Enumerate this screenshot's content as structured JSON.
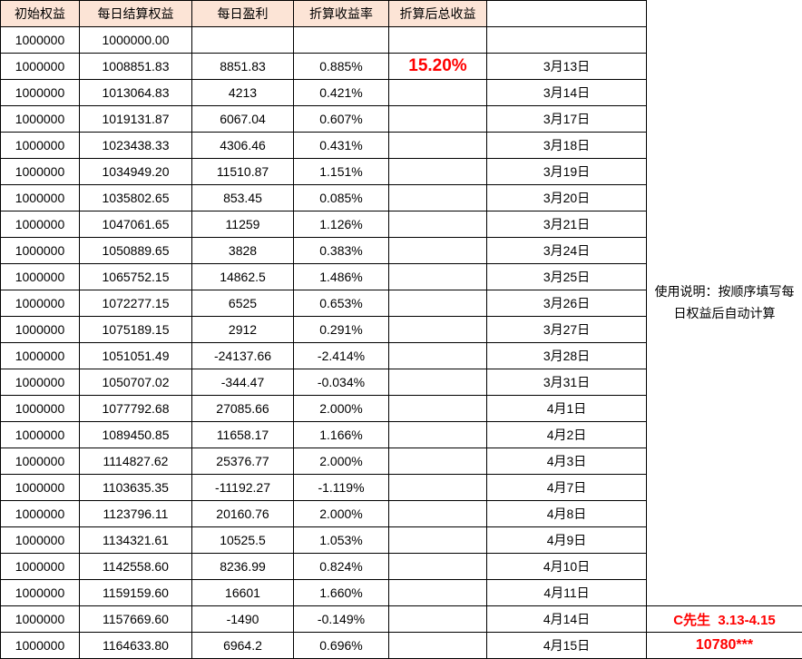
{
  "table": {
    "columns": [
      "初始权益",
      "每日结算权益",
      "每日盈利",
      "折算收益率",
      "折算后总收益",
      ""
    ],
    "note": "使用说明：按顺序填写每日权益后自动计算",
    "footer_label": "C先生  3.13-4.15",
    "footer_value": "10780***",
    "colors": {
      "header_bg": "#FCE4D6",
      "accent_red": "#FF0000",
      "border": "#000000"
    },
    "rows": [
      {
        "initial": "1000000",
        "equity": "1000000.00",
        "profit": "",
        "rate": "",
        "total": "",
        "date": ""
      },
      {
        "initial": "1000000",
        "equity": "1008851.83",
        "profit": "8851.83",
        "rate": "0.885%",
        "total": "15.20%",
        "date": "3月13日"
      },
      {
        "initial": "1000000",
        "equity": "1013064.83",
        "profit": "4213",
        "rate": "0.421%",
        "total": "",
        "date": "3月14日"
      },
      {
        "initial": "1000000",
        "equity": "1019131.87",
        "profit": "6067.04",
        "rate": "0.607%",
        "total": "",
        "date": "3月17日"
      },
      {
        "initial": "1000000",
        "equity": "1023438.33",
        "profit": "4306.46",
        "rate": "0.431%",
        "total": "",
        "date": "3月18日"
      },
      {
        "initial": "1000000",
        "equity": "1034949.20",
        "profit": "11510.87",
        "rate": "1.151%",
        "total": "",
        "date": "3月19日"
      },
      {
        "initial": "1000000",
        "equity": "1035802.65",
        "profit": "853.45",
        "rate": "0.085%",
        "total": "",
        "date": "3月20日"
      },
      {
        "initial": "1000000",
        "equity": "1047061.65",
        "profit": "11259",
        "rate": "1.126%",
        "total": "",
        "date": "3月21日"
      },
      {
        "initial": "1000000",
        "equity": "1050889.65",
        "profit": "3828",
        "rate": "0.383%",
        "total": "",
        "date": "3月24日"
      },
      {
        "initial": "1000000",
        "equity": "1065752.15",
        "profit": "14862.5",
        "rate": "1.486%",
        "total": "",
        "date": "3月25日"
      },
      {
        "initial": "1000000",
        "equity": "1072277.15",
        "profit": "6525",
        "rate": "0.653%",
        "total": "",
        "date": "3月26日"
      },
      {
        "initial": "1000000",
        "equity": "1075189.15",
        "profit": "2912",
        "rate": "0.291%",
        "total": "",
        "date": "3月27日"
      },
      {
        "initial": "1000000",
        "equity": "1051051.49",
        "profit": "-24137.66",
        "rate": "-2.414%",
        "total": "",
        "date": "3月28日"
      },
      {
        "initial": "1000000",
        "equity": "1050707.02",
        "profit": "-344.47",
        "rate": "-0.034%",
        "total": "",
        "date": "3月31日"
      },
      {
        "initial": "1000000",
        "equity": "1077792.68",
        "profit": "27085.66",
        "rate": "2.000%",
        "total": "",
        "date": "4月1日"
      },
      {
        "initial": "1000000",
        "equity": "1089450.85",
        "profit": "11658.17",
        "rate": "1.166%",
        "total": "",
        "date": "4月2日"
      },
      {
        "initial": "1000000",
        "equity": "1114827.62",
        "profit": "25376.77",
        "rate": "2.000%",
        "total": "",
        "date": "4月3日"
      },
      {
        "initial": "1000000",
        "equity": "1103635.35",
        "profit": "-11192.27",
        "rate": "-1.119%",
        "total": "",
        "date": "4月7日"
      },
      {
        "initial": "1000000",
        "equity": "1123796.11",
        "profit": "20160.76",
        "rate": "2.000%",
        "total": "",
        "date": "4月8日"
      },
      {
        "initial": "1000000",
        "equity": "1134321.61",
        "profit": "10525.5",
        "rate": "1.053%",
        "total": "",
        "date": "4月9日"
      },
      {
        "initial": "1000000",
        "equity": "1142558.60",
        "profit": "8236.99",
        "rate": "0.824%",
        "total": "",
        "date": "4月10日"
      },
      {
        "initial": "1000000",
        "equity": "1159159.60",
        "profit": "16601",
        "rate": "1.660%",
        "total": "",
        "date": "4月11日"
      },
      {
        "initial": "1000000",
        "equity": "1157669.60",
        "profit": "-1490",
        "rate": "-0.149%",
        "total": "",
        "date": "4月14日"
      },
      {
        "initial": "1000000",
        "equity": "1164633.80",
        "profit": "6964.2",
        "rate": "0.696%",
        "total": "",
        "date": "4月15日"
      }
    ]
  }
}
